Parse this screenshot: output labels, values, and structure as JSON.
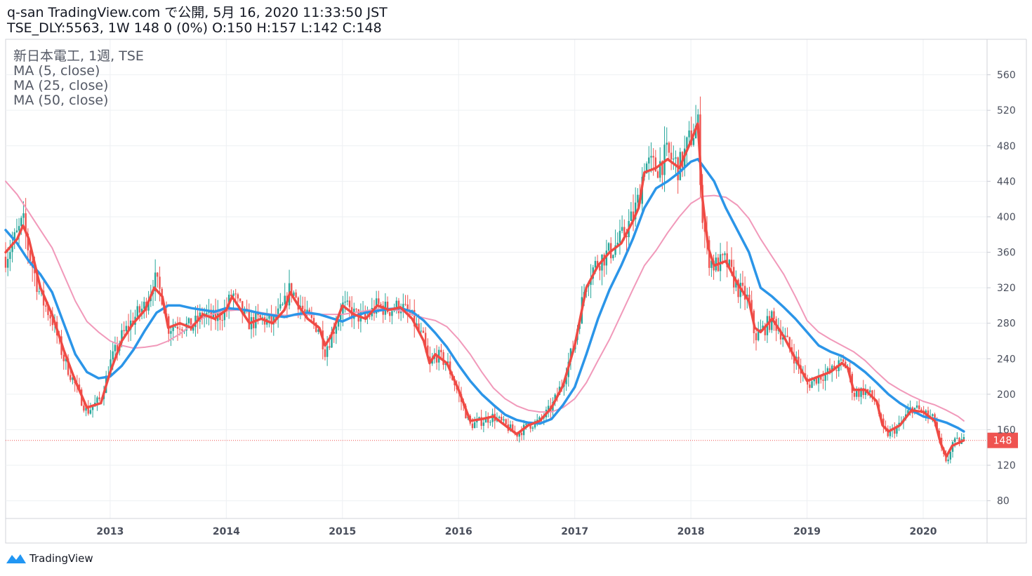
{
  "header": {
    "line1": "q-san TradingView.com で公開, 5月 16, 2020 11:33:50 JST",
    "line2": "TSE_DLY:5563, 1W 148 0 (0%) O:150 H:157 L:142 C:148"
  },
  "legend": {
    "symbol": "新日本電工, 1週, TSE",
    "ma5": "MA (5, close)",
    "ma25": "MA (25, close)",
    "ma50": "MA (50, close)"
  },
  "branding": {
    "logo_text": "TradingView"
  },
  "colors": {
    "ma5": "#ef4a44",
    "ma25": "#2b95e8",
    "ma50": "#f199ba",
    "up": "#26a69a",
    "down": "#ef5350",
    "last_price": "#ef5350"
  },
  "chart_data": {
    "type": "candlestick",
    "ylim": [
      60,
      600
    ],
    "y_ticks": [
      80,
      120,
      160,
      200,
      240,
      280,
      320,
      360,
      400,
      440,
      480,
      520,
      560
    ],
    "x_ticks": [
      {
        "label": "2013",
        "t": 2013.0
      },
      {
        "label": "2014",
        "t": 2014.0
      },
      {
        "label": "2015",
        "t": 2015.0
      },
      {
        "label": "2016",
        "t": 2016.0
      },
      {
        "label": "2017",
        "t": 2017.0
      },
      {
        "label": "2018",
        "t": 2018.0
      },
      {
        "label": "2019",
        "t": 2019.0
      },
      {
        "label": "2020",
        "t": 2020.0
      }
    ],
    "xlim": [
      2012.1,
      2020.55
    ],
    "last_price": {
      "value": 148,
      "label": "148"
    },
    "price_path": [
      [
        2012.1,
        355
      ],
      [
        2012.2,
        380
      ],
      [
        2012.25,
        395
      ],
      [
        2012.3,
        360
      ],
      [
        2012.4,
        310
      ],
      [
        2012.5,
        285
      ],
      [
        2012.6,
        240
      ],
      [
        2012.7,
        210
      ],
      [
        2012.8,
        180
      ],
      [
        2012.92,
        195
      ],
      [
        2013.0,
        235
      ],
      [
        2013.1,
        265
      ],
      [
        2013.2,
        285
      ],
      [
        2013.3,
        300
      ],
      [
        2013.38,
        330
      ],
      [
        2013.45,
        310
      ],
      [
        2013.5,
        275
      ],
      [
        2013.6,
        280
      ],
      [
        2013.7,
        275
      ],
      [
        2013.8,
        290
      ],
      [
        2013.9,
        285
      ],
      [
        2014.0,
        295
      ],
      [
        2014.05,
        315
      ],
      [
        2014.1,
        300
      ],
      [
        2014.2,
        280
      ],
      [
        2014.3,
        285
      ],
      [
        2014.4,
        280
      ],
      [
        2014.5,
        300
      ],
      [
        2014.55,
        320
      ],
      [
        2014.62,
        305
      ],
      [
        2014.7,
        285
      ],
      [
        2014.8,
        275
      ],
      [
        2014.85,
        250
      ],
      [
        2014.9,
        265
      ],
      [
        2015.0,
        300
      ],
      [
        2015.1,
        290
      ],
      [
        2015.2,
        285
      ],
      [
        2015.3,
        300
      ],
      [
        2015.4,
        295
      ],
      [
        2015.5,
        300
      ],
      [
        2015.6,
        285
      ],
      [
        2015.7,
        260
      ],
      [
        2015.75,
        230
      ],
      [
        2015.8,
        245
      ],
      [
        2015.9,
        235
      ],
      [
        2016.0,
        200
      ],
      [
        2016.1,
        165
      ],
      [
        2016.2,
        170
      ],
      [
        2016.3,
        175
      ],
      [
        2016.4,
        165
      ],
      [
        2016.5,
        155
      ],
      [
        2016.6,
        165
      ],
      [
        2016.7,
        170
      ],
      [
        2016.8,
        185
      ],
      [
        2016.9,
        215
      ],
      [
        2017.0,
        260
      ],
      [
        2017.1,
        330
      ],
      [
        2017.2,
        350
      ],
      [
        2017.3,
        360
      ],
      [
        2017.4,
        375
      ],
      [
        2017.5,
        400
      ],
      [
        2017.55,
        420
      ],
      [
        2017.6,
        460
      ],
      [
        2017.7,
        455
      ],
      [
        2017.8,
        470
      ],
      [
        2017.9,
        455
      ],
      [
        2018.0,
        490
      ],
      [
        2018.06,
        505
      ],
      [
        2018.1,
        400
      ],
      [
        2018.15,
        355
      ],
      [
        2018.2,
        345
      ],
      [
        2018.3,
        350
      ],
      [
        2018.4,
        320
      ],
      [
        2018.5,
        305
      ],
      [
        2018.55,
        265
      ],
      [
        2018.6,
        270
      ],
      [
        2018.7,
        285
      ],
      [
        2018.8,
        265
      ],
      [
        2018.9,
        240
      ],
      [
        2019.0,
        210
      ],
      [
        2019.1,
        220
      ],
      [
        2019.2,
        225
      ],
      [
        2019.3,
        235
      ],
      [
        2019.35,
        230
      ],
      [
        2019.4,
        200
      ],
      [
        2019.5,
        205
      ],
      [
        2019.6,
        190
      ],
      [
        2019.65,
        160
      ],
      [
        2019.7,
        155
      ],
      [
        2019.8,
        165
      ],
      [
        2019.9,
        185
      ],
      [
        2020.0,
        180
      ],
      [
        2020.05,
        175
      ],
      [
        2020.1,
        170
      ],
      [
        2020.15,
        140
      ],
      [
        2020.2,
        120
      ],
      [
        2020.25,
        145
      ],
      [
        2020.35,
        148
      ]
    ],
    "ma5_path": [
      [
        2012.1,
        360
      ],
      [
        2012.2,
        375
      ],
      [
        2012.25,
        390
      ],
      [
        2012.3,
        375
      ],
      [
        2012.4,
        320
      ],
      [
        2012.5,
        290
      ],
      [
        2012.6,
        250
      ],
      [
        2012.7,
        215
      ],
      [
        2012.8,
        185
      ],
      [
        2012.92,
        190
      ],
      [
        2013.0,
        225
      ],
      [
        2013.1,
        260
      ],
      [
        2013.2,
        280
      ],
      [
        2013.3,
        295
      ],
      [
        2013.38,
        320
      ],
      [
        2013.45,
        310
      ],
      [
        2013.5,
        275
      ],
      [
        2013.6,
        280
      ],
      [
        2013.7,
        275
      ],
      [
        2013.8,
        290
      ],
      [
        2013.9,
        285
      ],
      [
        2014.0,
        295
      ],
      [
        2014.05,
        310
      ],
      [
        2014.1,
        300
      ],
      [
        2014.2,
        280
      ],
      [
        2014.3,
        285
      ],
      [
        2014.4,
        280
      ],
      [
        2014.5,
        295
      ],
      [
        2014.55,
        315
      ],
      [
        2014.62,
        300
      ],
      [
        2014.7,
        285
      ],
      [
        2014.8,
        275
      ],
      [
        2014.85,
        255
      ],
      [
        2014.9,
        265
      ],
      [
        2015.0,
        300
      ],
      [
        2015.1,
        290
      ],
      [
        2015.2,
        285
      ],
      [
        2015.3,
        300
      ],
      [
        2015.4,
        295
      ],
      [
        2015.5,
        298
      ],
      [
        2015.6,
        285
      ],
      [
        2015.7,
        260
      ],
      [
        2015.75,
        235
      ],
      [
        2015.8,
        245
      ],
      [
        2015.9,
        235
      ],
      [
        2016.0,
        205
      ],
      [
        2016.1,
        170
      ],
      [
        2016.2,
        172
      ],
      [
        2016.3,
        175
      ],
      [
        2016.4,
        165
      ],
      [
        2016.5,
        155
      ],
      [
        2016.6,
        165
      ],
      [
        2016.7,
        170
      ],
      [
        2016.8,
        185
      ],
      [
        2016.9,
        210
      ],
      [
        2017.0,
        255
      ],
      [
        2017.1,
        320
      ],
      [
        2017.2,
        345
      ],
      [
        2017.3,
        360
      ],
      [
        2017.4,
        370
      ],
      [
        2017.5,
        395
      ],
      [
        2017.55,
        410
      ],
      [
        2017.6,
        450
      ],
      [
        2017.7,
        455
      ],
      [
        2017.8,
        465
      ],
      [
        2017.9,
        455
      ],
      [
        2018.0,
        485
      ],
      [
        2018.06,
        505
      ],
      [
        2018.1,
        420
      ],
      [
        2018.15,
        365
      ],
      [
        2018.2,
        345
      ],
      [
        2018.3,
        350
      ],
      [
        2018.4,
        325
      ],
      [
        2018.5,
        305
      ],
      [
        2018.55,
        275
      ],
      [
        2018.6,
        270
      ],
      [
        2018.7,
        285
      ],
      [
        2018.8,
        265
      ],
      [
        2018.9,
        240
      ],
      [
        2019.0,
        215
      ],
      [
        2019.1,
        220
      ],
      [
        2019.2,
        225
      ],
      [
        2019.3,
        235
      ],
      [
        2019.35,
        230
      ],
      [
        2019.4,
        205
      ],
      [
        2019.5,
        205
      ],
      [
        2019.6,
        192
      ],
      [
        2019.65,
        165
      ],
      [
        2019.7,
        158
      ],
      [
        2019.8,
        165
      ],
      [
        2019.9,
        182
      ],
      [
        2020.0,
        180
      ],
      [
        2020.05,
        175
      ],
      [
        2020.1,
        170
      ],
      [
        2020.15,
        145
      ],
      [
        2020.2,
        130
      ],
      [
        2020.25,
        142
      ],
      [
        2020.35,
        148
      ]
    ],
    "ma25_path": [
      [
        2012.1,
        385
      ],
      [
        2012.2,
        370
      ],
      [
        2012.3,
        350
      ],
      [
        2012.4,
        335
      ],
      [
        2012.5,
        315
      ],
      [
        2012.6,
        280
      ],
      [
        2012.7,
        245
      ],
      [
        2012.8,
        225
      ],
      [
        2012.9,
        218
      ],
      [
        2013.0,
        220
      ],
      [
        2013.1,
        232
      ],
      [
        2013.2,
        250
      ],
      [
        2013.3,
        272
      ],
      [
        2013.4,
        292
      ],
      [
        2013.5,
        300
      ],
      [
        2013.6,
        300
      ],
      [
        2013.7,
        297
      ],
      [
        2013.8,
        295
      ],
      [
        2013.9,
        293
      ],
      [
        2014.0,
        297
      ],
      [
        2014.1,
        296
      ],
      [
        2014.2,
        294
      ],
      [
        2014.3,
        291
      ],
      [
        2014.4,
        289
      ],
      [
        2014.5,
        287
      ],
      [
        2014.6,
        290
      ],
      [
        2014.7,
        292
      ],
      [
        2014.8,
        290
      ],
      [
        2014.9,
        286
      ],
      [
        2015.0,
        282
      ],
      [
        2015.1,
        288
      ],
      [
        2015.2,
        292
      ],
      [
        2015.3,
        294
      ],
      [
        2015.4,
        296
      ],
      [
        2015.5,
        297
      ],
      [
        2015.6,
        293
      ],
      [
        2015.7,
        283
      ],
      [
        2015.8,
        269
      ],
      [
        2015.9,
        253
      ],
      [
        2016.0,
        233
      ],
      [
        2016.1,
        215
      ],
      [
        2016.2,
        200
      ],
      [
        2016.3,
        188
      ],
      [
        2016.4,
        177
      ],
      [
        2016.5,
        171
      ],
      [
        2016.6,
        168
      ],
      [
        2016.7,
        167
      ],
      [
        2016.8,
        172
      ],
      [
        2016.9,
        188
      ],
      [
        2017.0,
        208
      ],
      [
        2017.1,
        245
      ],
      [
        2017.2,
        285
      ],
      [
        2017.3,
        318
      ],
      [
        2017.4,
        345
      ],
      [
        2017.5,
        375
      ],
      [
        2017.6,
        410
      ],
      [
        2017.7,
        432
      ],
      [
        2017.8,
        440
      ],
      [
        2017.9,
        450
      ],
      [
        2018.0,
        462
      ],
      [
        2018.06,
        465
      ],
      [
        2018.1,
        458
      ],
      [
        2018.2,
        440
      ],
      [
        2018.3,
        410
      ],
      [
        2018.4,
        385
      ],
      [
        2018.5,
        360
      ],
      [
        2018.55,
        340
      ],
      [
        2018.6,
        320
      ],
      [
        2018.7,
        310
      ],
      [
        2018.8,
        298
      ],
      [
        2018.9,
        285
      ],
      [
        2019.0,
        270
      ],
      [
        2019.1,
        255
      ],
      [
        2019.2,
        248
      ],
      [
        2019.3,
        243
      ],
      [
        2019.4,
        235
      ],
      [
        2019.5,
        225
      ],
      [
        2019.6,
        213
      ],
      [
        2019.7,
        200
      ],
      [
        2019.8,
        190
      ],
      [
        2019.9,
        182
      ],
      [
        2020.0,
        175
      ],
      [
        2020.1,
        172
      ],
      [
        2020.2,
        168
      ],
      [
        2020.3,
        162
      ],
      [
        2020.35,
        158
      ]
    ],
    "ma50_path": [
      [
        2012.1,
        440
      ],
      [
        2012.2,
        425
      ],
      [
        2012.3,
        405
      ],
      [
        2012.4,
        385
      ],
      [
        2012.5,
        365
      ],
      [
        2012.6,
        335
      ],
      [
        2012.7,
        305
      ],
      [
        2012.8,
        282
      ],
      [
        2012.9,
        270
      ],
      [
        2013.0,
        260
      ],
      [
        2013.1,
        255
      ],
      [
        2013.2,
        252
      ],
      [
        2013.3,
        253
      ],
      [
        2013.4,
        255
      ],
      [
        2013.5,
        260
      ],
      [
        2013.6,
        268
      ],
      [
        2013.7,
        278
      ],
      [
        2013.8,
        286
      ],
      [
        2013.9,
        291
      ],
      [
        2014.0,
        294
      ],
      [
        2014.1,
        295
      ],
      [
        2014.2,
        294
      ],
      [
        2014.3,
        292
      ],
      [
        2014.4,
        290
      ],
      [
        2014.5,
        289
      ],
      [
        2014.6,
        289
      ],
      [
        2014.7,
        290
      ],
      [
        2014.8,
        290
      ],
      [
        2014.9,
        290
      ],
      [
        2015.0,
        290
      ],
      [
        2015.1,
        292
      ],
      [
        2015.2,
        294
      ],
      [
        2015.3,
        296
      ],
      [
        2015.4,
        296
      ],
      [
        2015.5,
        294
      ],
      [
        2015.6,
        290
      ],
      [
        2015.7,
        286
      ],
      [
        2015.8,
        283
      ],
      [
        2015.9,
        276
      ],
      [
        2016.0,
        262
      ],
      [
        2016.1,
        245
      ],
      [
        2016.2,
        225
      ],
      [
        2016.3,
        207
      ],
      [
        2016.4,
        195
      ],
      [
        2016.5,
        187
      ],
      [
        2016.6,
        182
      ],
      [
        2016.7,
        180
      ],
      [
        2016.8,
        180
      ],
      [
        2016.9,
        185
      ],
      [
        2017.0,
        195
      ],
      [
        2017.1,
        213
      ],
      [
        2017.2,
        238
      ],
      [
        2017.3,
        262
      ],
      [
        2017.4,
        290
      ],
      [
        2017.5,
        318
      ],
      [
        2017.6,
        345
      ],
      [
        2017.7,
        362
      ],
      [
        2017.8,
        382
      ],
      [
        2017.9,
        400
      ],
      [
        2018.0,
        415
      ],
      [
        2018.1,
        423
      ],
      [
        2018.2,
        424
      ],
      [
        2018.3,
        422
      ],
      [
        2018.4,
        413
      ],
      [
        2018.5,
        398
      ],
      [
        2018.6,
        375
      ],
      [
        2018.7,
        355
      ],
      [
        2018.8,
        335
      ],
      [
        2018.9,
        310
      ],
      [
        2019.0,
        283
      ],
      [
        2019.1,
        270
      ],
      [
        2019.2,
        262
      ],
      [
        2019.3,
        255
      ],
      [
        2019.4,
        248
      ],
      [
        2019.5,
        238
      ],
      [
        2019.6,
        225
      ],
      [
        2019.7,
        213
      ],
      [
        2019.8,
        205
      ],
      [
        2019.9,
        198
      ],
      [
        2020.0,
        192
      ],
      [
        2020.1,
        188
      ],
      [
        2020.2,
        182
      ],
      [
        2020.3,
        175
      ],
      [
        2020.35,
        170
      ]
    ]
  }
}
